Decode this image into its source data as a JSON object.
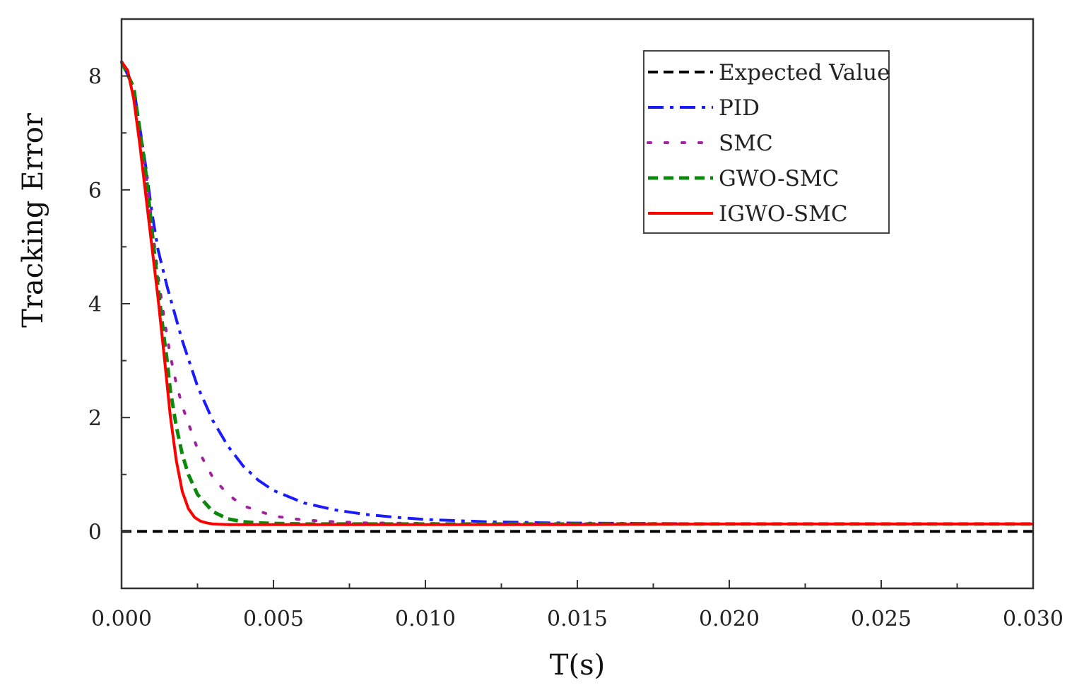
{
  "chart_data": {
    "type": "line",
    "title": "",
    "xlabel": "T(s)",
    "ylabel": "Tracking Error",
    "xlim": [
      0,
      0.03
    ],
    "ylim": [
      -1,
      9
    ],
    "xticks": [
      0,
      0.005,
      0.01,
      0.015,
      0.02,
      0.025,
      0.03
    ],
    "xtick_labels": [
      "0.000",
      "0.005",
      "0.010",
      "0.015",
      "0.020",
      "0.025",
      "0.030"
    ],
    "yticks": [
      0,
      2,
      4,
      6,
      8
    ],
    "ytick_labels": [
      "0",
      "2",
      "4",
      "6",
      "8"
    ],
    "legend_position": "top-right",
    "series": [
      {
        "name": "Expected Value",
        "color": "#000000",
        "style": "dashed",
        "x": [
          0,
          0.03
        ],
        "y": [
          0,
          0
        ]
      },
      {
        "name": "PID",
        "color": "#1a1aff",
        "style": "dash-dot",
        "x": [
          0,
          0.0004,
          0.0008,
          0.001,
          0.0012,
          0.0015,
          0.002,
          0.0025,
          0.003,
          0.0035,
          0.004,
          0.0045,
          0.005,
          0.006,
          0.007,
          0.008,
          0.009,
          0.01,
          0.011,
          0.012,
          0.014,
          0.017,
          0.02,
          0.025,
          0.03
        ],
        "y": [
          8.25,
          7.8,
          6.4,
          5.6,
          4.95,
          4.3,
          3.35,
          2.55,
          1.95,
          1.5,
          1.15,
          0.9,
          0.72,
          0.5,
          0.38,
          0.3,
          0.25,
          0.21,
          0.19,
          0.17,
          0.15,
          0.14,
          0.13,
          0.13,
          0.13
        ]
      },
      {
        "name": "SMC",
        "color": "#a020a0",
        "style": "dotted",
        "x": [
          0,
          0.0004,
          0.0008,
          0.001,
          0.0012,
          0.0014,
          0.0016,
          0.0018,
          0.002,
          0.0025,
          0.003,
          0.0035,
          0.004,
          0.005,
          0.006,
          0.007,
          0.008,
          0.01,
          0.012,
          0.015,
          0.02,
          0.025,
          0.03
        ],
        "y": [
          8.25,
          7.8,
          6.3,
          5.4,
          4.5,
          3.75,
          3.1,
          2.6,
          2.2,
          1.45,
          0.95,
          0.65,
          0.45,
          0.27,
          0.2,
          0.17,
          0.15,
          0.14,
          0.13,
          0.13,
          0.13,
          0.13,
          0.13
        ]
      },
      {
        "name": "GWO-SMC",
        "color": "#0a8a0a",
        "style": "dashed",
        "x": [
          0,
          0.0004,
          0.0008,
          0.001,
          0.0012,
          0.0014,
          0.0015,
          0.0016,
          0.0018,
          0.002,
          0.0022,
          0.0025,
          0.003,
          0.0035,
          0.004,
          0.0045,
          0.005,
          0.006,
          0.008,
          0.01,
          0.015,
          0.02,
          0.025,
          0.03
        ],
        "y": [
          8.25,
          7.8,
          6.3,
          5.3,
          4.3,
          3.4,
          3.0,
          2.5,
          1.85,
          1.35,
          1.0,
          0.65,
          0.35,
          0.22,
          0.17,
          0.15,
          0.14,
          0.13,
          0.13,
          0.13,
          0.13,
          0.13,
          0.13,
          0.13
        ]
      },
      {
        "name": "IGWO-SMC",
        "color": "#ff0000",
        "style": "solid",
        "x": [
          0,
          0.0002,
          0.0004,
          0.0006,
          0.0008,
          0.001,
          0.0012,
          0.0014,
          0.0016,
          0.0018,
          0.002,
          0.0022,
          0.0024,
          0.0026,
          0.0028,
          0.003,
          0.0035,
          0.004,
          0.006,
          0.01,
          0.015,
          0.02,
          0.025,
          0.03
        ],
        "y": [
          8.25,
          8.1,
          7.6,
          6.8,
          5.9,
          5.0,
          4.1,
          3.1,
          2.05,
          1.25,
          0.7,
          0.4,
          0.25,
          0.18,
          0.15,
          0.13,
          0.12,
          0.12,
          0.12,
          0.12,
          0.12,
          0.13,
          0.13,
          0.13
        ]
      }
    ]
  }
}
